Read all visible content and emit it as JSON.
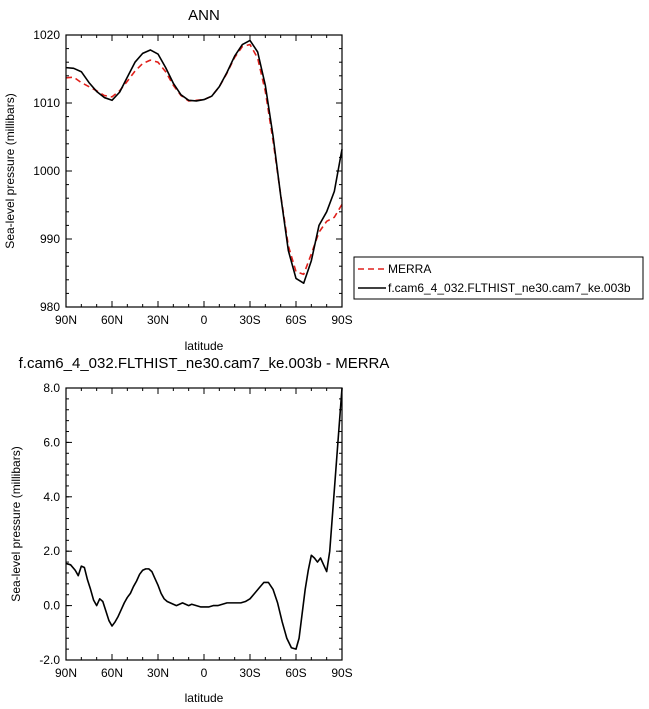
{
  "chart_data": [
    {
      "type": "line",
      "title": "ANN",
      "xlabel": "latitude",
      "ylabel": "Sea-level pressure (millibars)",
      "xlim": [
        90,
        -90
      ],
      "ylim": [
        980,
        1020
      ],
      "x_ticks": [
        90,
        60,
        30,
        0,
        -30,
        -60,
        -90
      ],
      "x_tick_labels": [
        "90N",
        "60N",
        "30N",
        "0",
        "30S",
        "60S",
        "90S"
      ],
      "y_ticks": [
        980,
        990,
        1000,
        1010,
        1020
      ],
      "y_tick_labels": [
        "980",
        "990",
        "1000",
        "1010",
        "1020"
      ],
      "legend": "right",
      "series": [
        {
          "name": "MERRA",
          "color": "#e0201b",
          "dash": "dashed",
          "x": [
            90,
            85,
            80,
            75,
            70,
            65,
            60,
            55,
            50,
            45,
            40,
            35,
            30,
            25,
            20,
            15,
            10,
            5,
            0,
            -5,
            -10,
            -15,
            -20,
            -25,
            -30,
            -35,
            -40,
            -45,
            -50,
            -55,
            -60,
            -65,
            -70,
            -75,
            -80,
            -85,
            -90
          ],
          "values": [
            1013.7,
            1013.8,
            1013.0,
            1012.4,
            1011.8,
            1011.1,
            1010.9,
            1011.8,
            1013.2,
            1014.7,
            1015.8,
            1016.3,
            1016.0,
            1014.6,
            1012.6,
            1011.1,
            1010.3,
            1010.4,
            1010.5,
            1011.0,
            1012.4,
            1014.4,
            1016.7,
            1018.3,
            1018.6,
            1016.6,
            1011.7,
            1004.5,
            996.5,
            989.0,
            985.2,
            984.8,
            987.8,
            991.0,
            992.6,
            993.2,
            995.1
          ]
        },
        {
          "name": "f.cam6_4_032.FLTHIST_ne30.cam7_ke.003b",
          "color": "#000000",
          "dash": "solid",
          "x": [
            90,
            85,
            80,
            75,
            70,
            65,
            60,
            55,
            50,
            45,
            40,
            35,
            30,
            25,
            20,
            15,
            10,
            5,
            0,
            -5,
            -10,
            -15,
            -20,
            -25,
            -30,
            -35,
            -40,
            -45,
            -50,
            -55,
            -60,
            -65,
            -70,
            -75,
            -80,
            -85,
            -90
          ],
          "values": [
            1015.2,
            1015.1,
            1014.6,
            1013.0,
            1011.7,
            1010.8,
            1010.4,
            1011.6,
            1013.8,
            1016.0,
            1017.3,
            1017.8,
            1017.2,
            1015.2,
            1012.9,
            1011.2,
            1010.4,
            1010.3,
            1010.5,
            1011.0,
            1012.4,
            1014.5,
            1016.9,
            1018.6,
            1019.2,
            1017.5,
            1012.6,
            1005.2,
            996.4,
            988.3,
            984.2,
            983.5,
            986.8,
            992.0,
            994.0,
            997.0,
            1003.2
          ]
        }
      ]
    },
    {
      "type": "line",
      "title": "f.cam6_4_032.FLTHIST_ne30.cam7_ke.003b - MERRA",
      "xlabel": "latitude",
      "ylabel": "Sea-level pressure (millibars)",
      "xlim": [
        90,
        -90
      ],
      "ylim": [
        -2.0,
        8.0
      ],
      "x_ticks": [
        90,
        60,
        30,
        0,
        -30,
        -60,
        -90
      ],
      "x_tick_labels": [
        "90N",
        "60N",
        "30N",
        "0",
        "30S",
        "60S",
        "90S"
      ],
      "y_ticks": [
        -2.0,
        0.0,
        2.0,
        4.0,
        6.0,
        8.0
      ],
      "y_tick_labels": [
        "-2.0",
        "0.0",
        "2.0",
        "4.0",
        "6.0",
        "8.0"
      ],
      "series": [
        {
          "color": "#000000",
          "dash": "solid",
          "x": [
            90,
            87,
            84,
            82,
            80,
            78,
            76,
            74,
            72,
            70,
            68,
            66,
            64,
            62,
            60,
            58,
            56,
            54,
            52,
            50,
            48,
            46,
            44,
            42,
            40,
            38,
            36,
            34,
            32,
            30,
            28,
            26,
            24,
            22,
            20,
            18,
            16,
            14,
            12,
            10,
            8,
            5,
            2,
            0,
            -3,
            -6,
            -9,
            -12,
            -15,
            -18,
            -21,
            -24,
            -27,
            -30,
            -33,
            -36,
            -39,
            -42,
            -45,
            -48,
            -51,
            -54,
            -57,
            -60,
            -62,
            -64,
            -66,
            -68,
            -70,
            -72,
            -74,
            -76,
            -78,
            -80,
            -82,
            -84,
            -86,
            -88,
            -90
          ],
          "values": [
            1.55,
            1.5,
            1.3,
            1.1,
            1.45,
            1.4,
            0.95,
            0.6,
            0.2,
            0.0,
            0.25,
            0.15,
            -0.2,
            -0.55,
            -0.75,
            -0.6,
            -0.4,
            -0.15,
            0.1,
            0.3,
            0.45,
            0.7,
            0.9,
            1.15,
            1.3,
            1.35,
            1.35,
            1.25,
            1.0,
            0.75,
            0.45,
            0.25,
            0.15,
            0.1,
            0.05,
            0.0,
            0.05,
            0.1,
            0.05,
            0.0,
            0.05,
            0.0,
            -0.05,
            -0.05,
            -0.05,
            0.0,
            0.0,
            0.05,
            0.1,
            0.1,
            0.1,
            0.1,
            0.15,
            0.25,
            0.45,
            0.65,
            0.85,
            0.85,
            0.6,
            0.1,
            -0.6,
            -1.2,
            -1.55,
            -1.6,
            -1.2,
            -0.3,
            0.6,
            1.3,
            1.85,
            1.75,
            1.6,
            1.75,
            1.5,
            1.25,
            2.0,
            3.5,
            5.0,
            6.5,
            8.0
          ]
        }
      ]
    }
  ]
}
